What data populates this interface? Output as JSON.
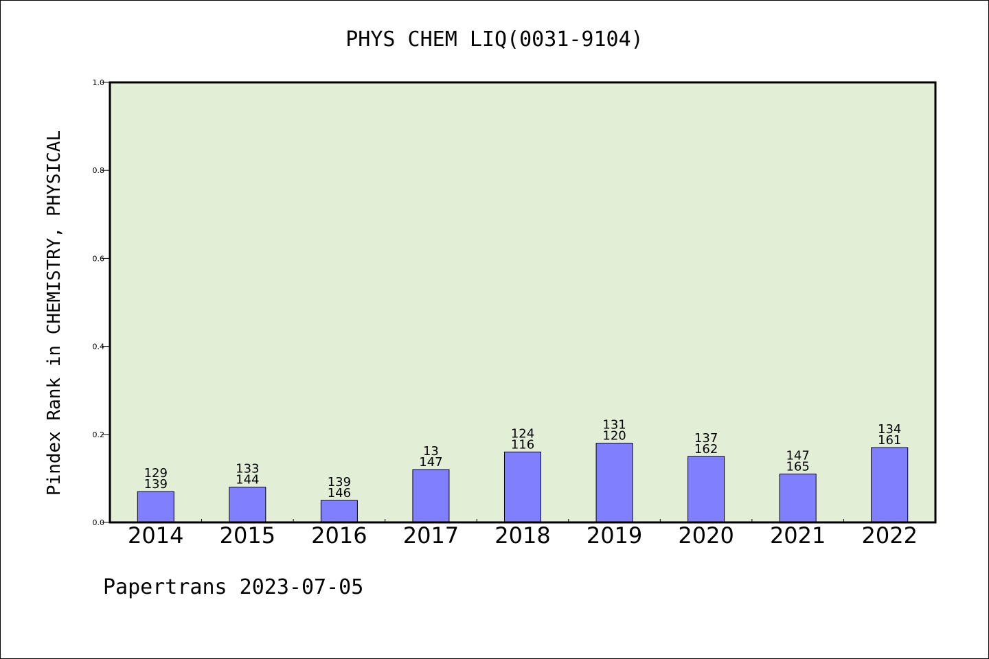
{
  "chart_data": {
    "type": "bar",
    "title": "PHYS CHEM LIQ(0031-9104)",
    "xlabel": "",
    "ylabel": "Pindex Rank in CHEMISTRY, PHYSICAL",
    "categories": [
      "2014",
      "2015",
      "2016",
      "2017",
      "2018",
      "2019",
      "2020",
      "2021",
      "2022"
    ],
    "values": [
      0.07,
      0.08,
      0.05,
      0.12,
      0.16,
      0.18,
      0.15,
      0.11,
      0.17
    ],
    "labels_top": [
      "129",
      "133",
      "139",
      "13",
      "124",
      "131",
      "137",
      "147",
      "134"
    ],
    "labels_bottom": [
      "139",
      "144",
      "146",
      "147",
      "116",
      "120",
      "162",
      "165",
      "161"
    ],
    "ylim": [
      0.0,
      1.0
    ],
    "yticks": [
      "0.0",
      "0.2",
      "0.4",
      "0.6",
      "0.8",
      "1.0"
    ],
    "grid": false,
    "colors": {
      "bar": "#8080ff",
      "plot_bg": "#e2efd6",
      "axis": "#000000"
    }
  },
  "footer": "Papertrans 2023-07-05"
}
